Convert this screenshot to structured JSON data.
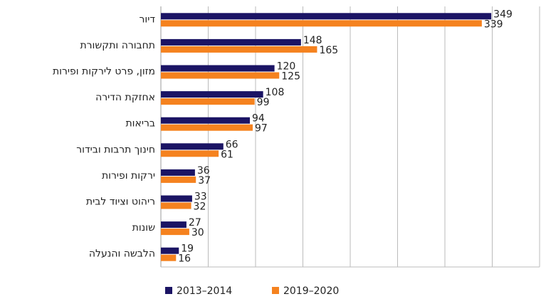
{
  "chart_data": {
    "type": "hbar",
    "categories": [
      "דיור",
      "תחבורה ותקשורת",
      "מזון, פרט לירקות ופירות",
      "אחזקת הדירה",
      "בריאות",
      "חינוך תרבות ובידור",
      "ירקות ופירות",
      "ריהוט וציוד לבית",
      "שונות",
      "הלבשה והנעלה"
    ],
    "series": [
      {
        "name": "2013–2014",
        "color": "#1b1464",
        "values": [
          349,
          148,
          120,
          108,
          94,
          66,
          36,
          33,
          27,
          19
        ]
      },
      {
        "name": "2019–2020",
        "color": "#f5821f",
        "values": [
          339,
          165,
          125,
          99,
          97,
          61,
          37,
          32,
          30,
          16
        ]
      }
    ],
    "xlim": [
      0,
      400
    ],
    "xticks": [
      0,
      50,
      100,
      150,
      200,
      250,
      300,
      350,
      400
    ],
    "grid": true,
    "legend": "bottom"
  }
}
